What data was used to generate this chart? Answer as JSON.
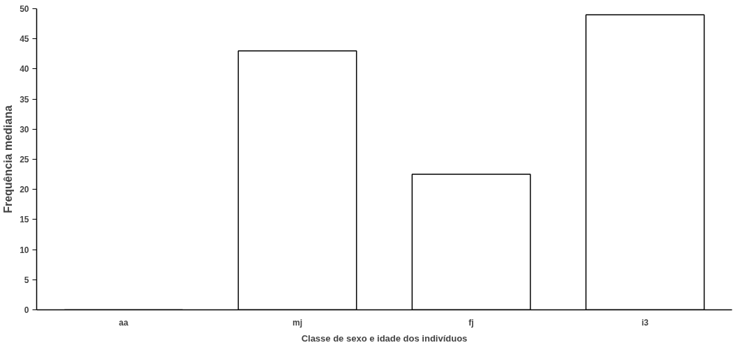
{
  "chart_data": {
    "type": "bar",
    "xlabel": "Classe de sexo e idade dos indivíduos",
    "ylabel": "Frequência mediana",
    "categories": [
      "aa",
      "mj",
      "fj",
      "i3"
    ],
    "values": [
      0,
      43,
      22.5,
      49
    ],
    "color": "#ffffff",
    "ylim": [
      0,
      50
    ],
    "yticks": [
      0,
      5,
      10,
      15,
      20,
      25,
      30,
      35,
      40,
      45,
      50
    ],
    "grid": false
  }
}
